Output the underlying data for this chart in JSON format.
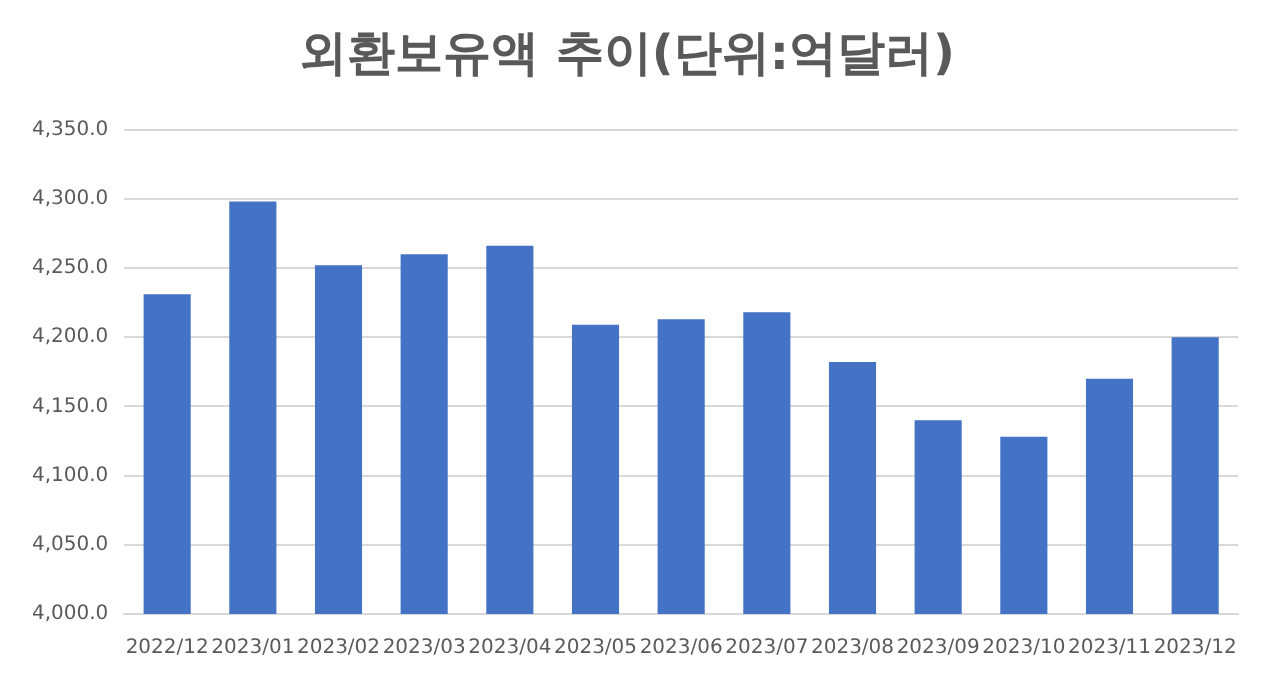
{
  "chart_data": {
    "type": "bar",
    "title": "외환보유액 추이(단위:억달러)",
    "categories": [
      "2022/12",
      "2023/01",
      "2023/02",
      "2023/03",
      "2023/04",
      "2023/05",
      "2023/06",
      "2023/07",
      "2023/08",
      "2023/09",
      "2023/10",
      "2023/11",
      "2023/12"
    ],
    "values": [
      4231,
      4298,
      4252,
      4260,
      4266,
      4209,
      4213,
      4218,
      4182,
      4140,
      4128,
      4170,
      4200
    ],
    "color": "#4472c4",
    "ylim": [
      4000,
      4350
    ],
    "yticks": [
      {
        "value": 4000,
        "label": "4,000.0"
      },
      {
        "value": 4050,
        "label": "4,050.0"
      },
      {
        "value": 4100,
        "label": "4,100.0"
      },
      {
        "value": 4150,
        "label": "4,150.0"
      },
      {
        "value": 4200,
        "label": "4,200.0"
      },
      {
        "value": 4250,
        "label": "4,250.0"
      },
      {
        "value": 4300,
        "label": "4,300.0"
      },
      {
        "value": 4350,
        "label": "4,350.0"
      }
    ],
    "grid": "y"
  }
}
